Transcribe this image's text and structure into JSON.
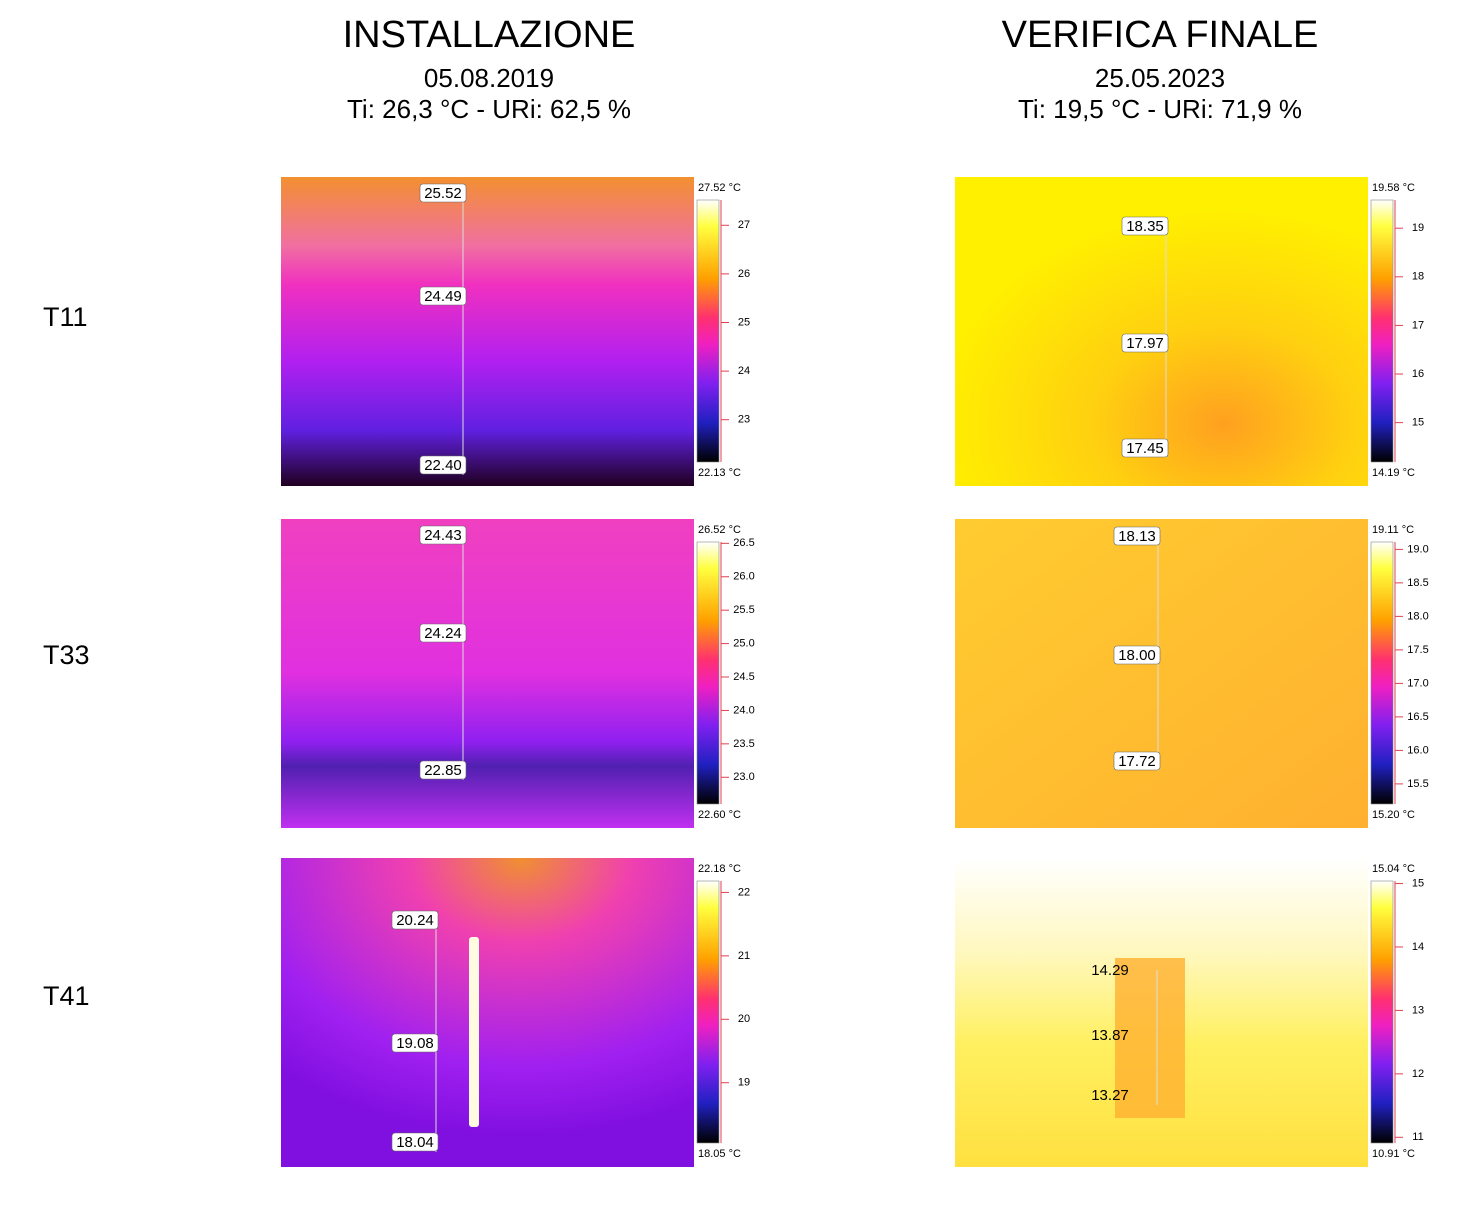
{
  "columns": [
    {
      "title": "INSTALLAZIONE",
      "date": "05.08.2019",
      "conditions": "Ti: 26,3 °C - URi: 62,5 %"
    },
    {
      "title": "VERIFICA FINALE",
      "date": "25.05.2023",
      "conditions": "Ti: 19,5 °C - URi: 71,9 %"
    }
  ],
  "rows": [
    {
      "label": "T11",
      "panels": [
        {
          "points": [
            "25.52",
            "24.49",
            "22.40"
          ],
          "scale": {
            "max": "27.52 °C",
            "min": "22.13 °C",
            "ticks": [
              "27",
              "26",
              "25",
              "24",
              "23"
            ]
          }
        },
        {
          "points": [
            "18.35",
            "17.97",
            "17.45"
          ],
          "scale": {
            "max": "19.58 °C",
            "min": "14.19 °C",
            "ticks": [
              "19",
              "18",
              "17",
              "16",
              "15"
            ]
          }
        }
      ]
    },
    {
      "label": "T33",
      "panels": [
        {
          "points": [
            "24.43",
            "24.24",
            "22.85"
          ],
          "scale": {
            "max": "26.52 °C",
            "min": "22.60 °C",
            "ticks": [
              "26.5",
              "26.0",
              "25.5",
              "25.0",
              "24.5",
              "24.0",
              "23.5",
              "23.0"
            ]
          }
        },
        {
          "points": [
            "18.13",
            "18.00",
            "17.72"
          ],
          "scale": {
            "max": "19.11 °C",
            "min": "15.20 °C",
            "ticks": [
              "19.0",
              "18.5",
              "18.0",
              "17.5",
              "17.0",
              "16.5",
              "16.0",
              "15.5"
            ]
          }
        }
      ]
    },
    {
      "label": "T41",
      "panels": [
        {
          "points": [
            "20.24",
            "19.08",
            "18.04"
          ],
          "scale": {
            "max": "22.18 °C",
            "min": "18.05 °C",
            "ticks": [
              "22",
              "21",
              "20",
              "19"
            ]
          }
        },
        {
          "points": [
            "14.29",
            "13.87",
            "13.27"
          ],
          "scale": {
            "max": "15.04 °C",
            "min": "10.91 °C",
            "ticks": [
              "15",
              "14",
              "13",
              "12",
              "11"
            ]
          }
        }
      ]
    }
  ]
}
